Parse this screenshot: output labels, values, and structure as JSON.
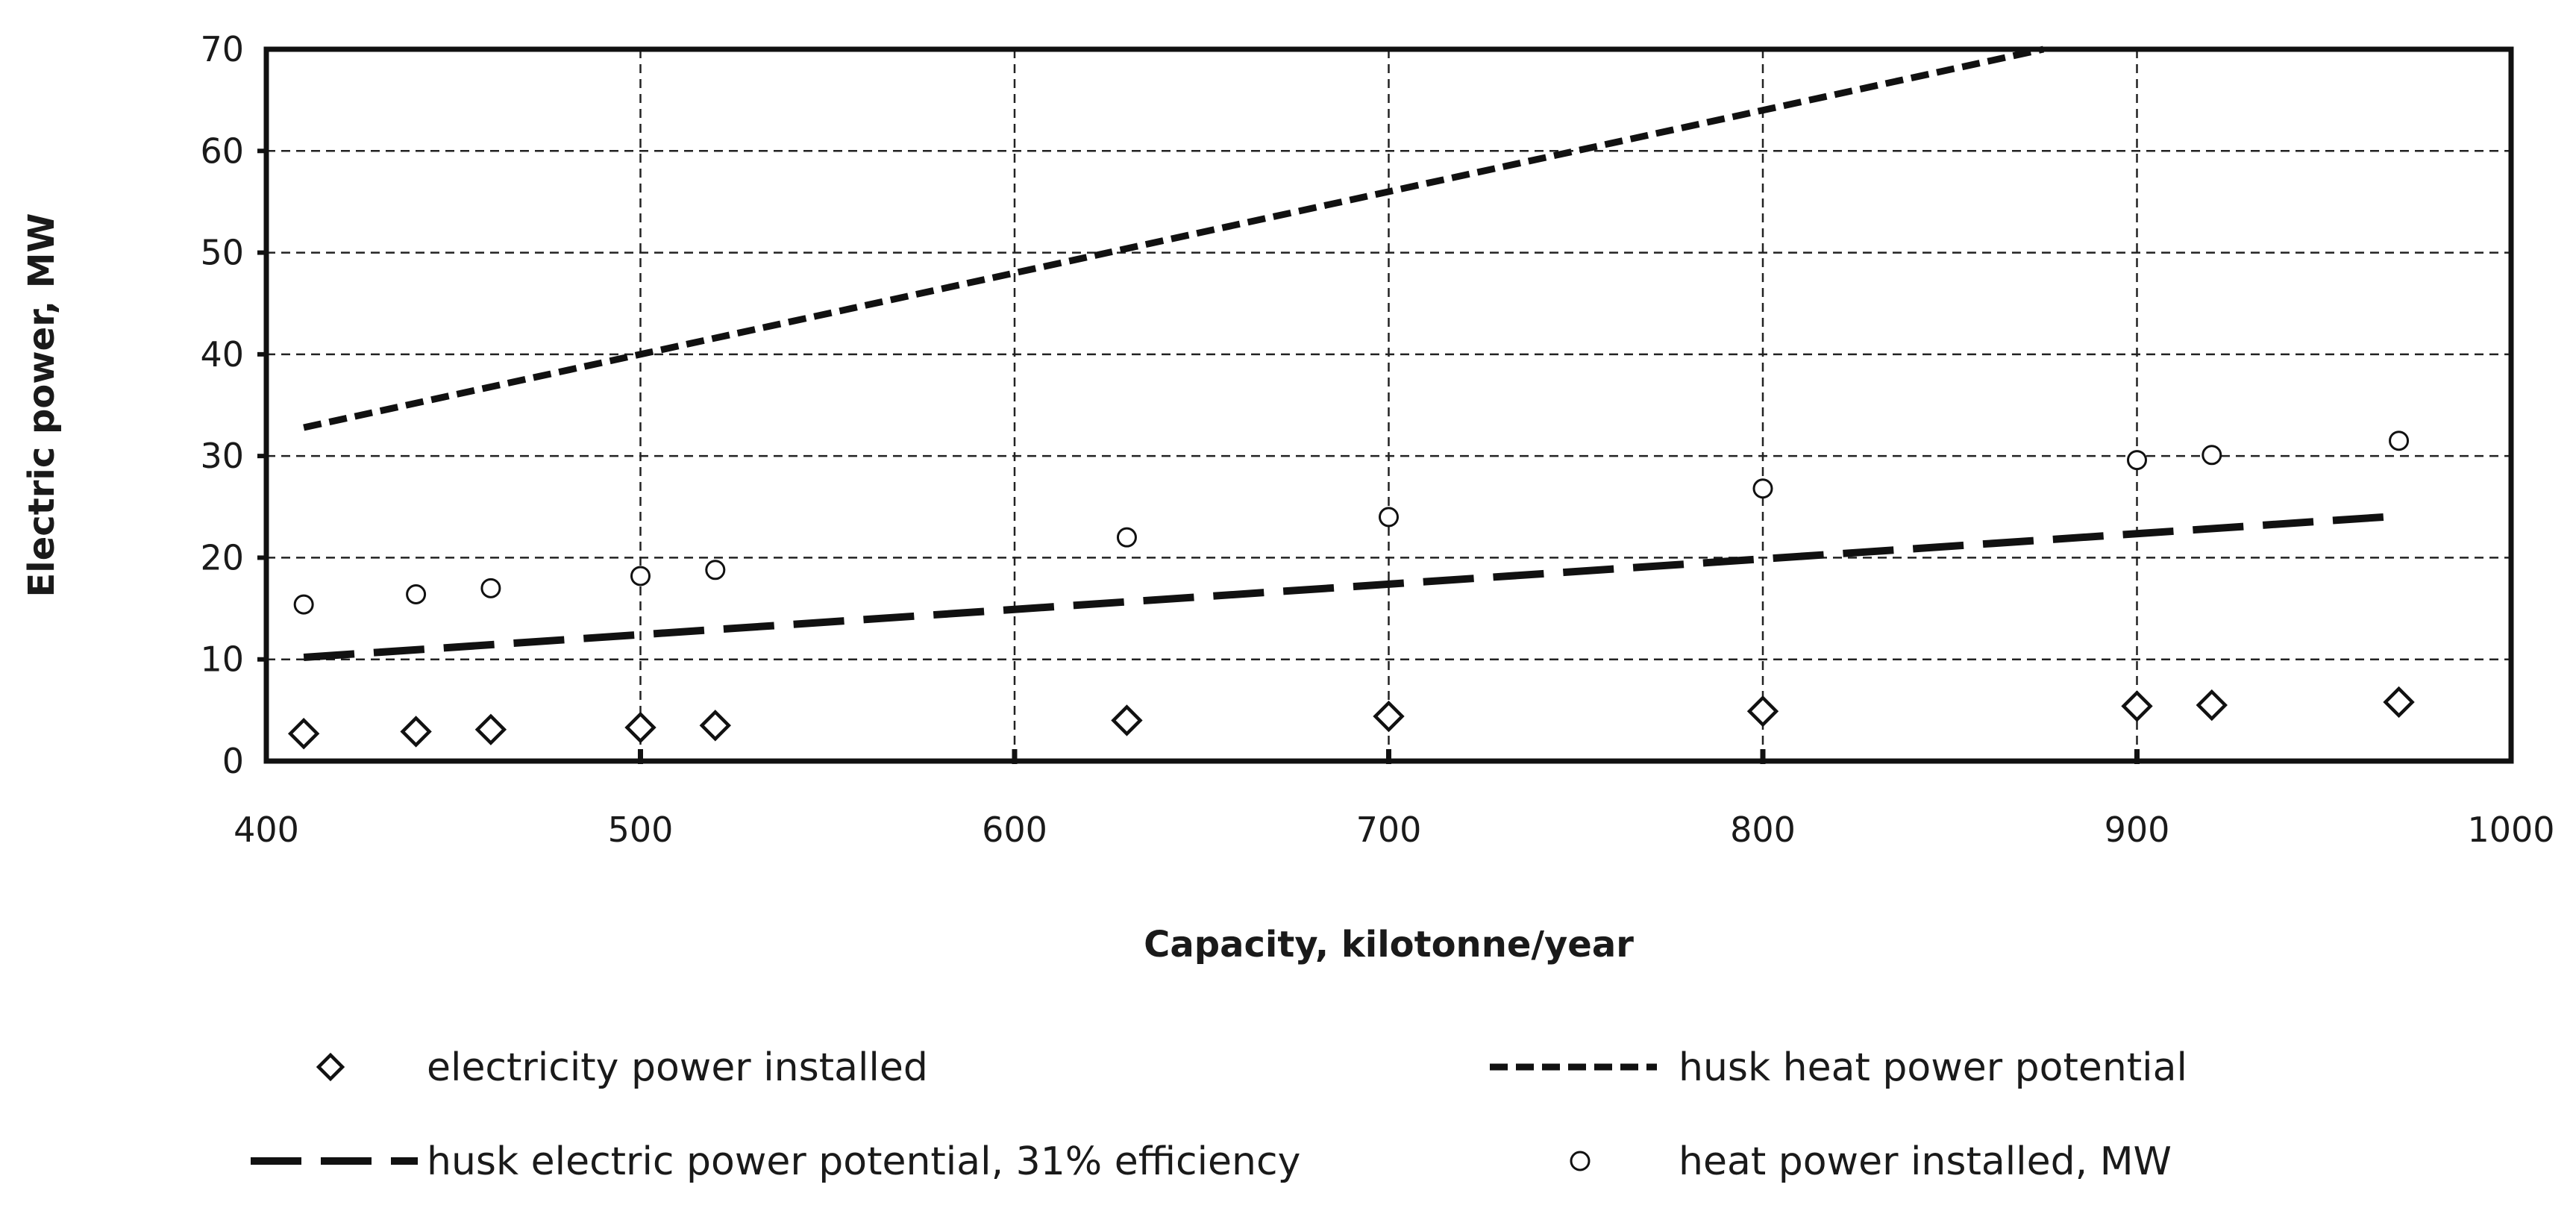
{
  "chart_data": {
    "type": "scatter",
    "title": "",
    "xlabel": "Capacity, kilotonne/year",
    "ylabel": "Electric power, MW",
    "xlim": [
      400,
      1000
    ],
    "ylim": [
      0,
      70
    ],
    "x_ticks": [
      "400",
      "500",
      "600",
      "700",
      "800",
      "900",
      "1000"
    ],
    "y_ticks": [
      "0",
      "10",
      "20",
      "30",
      "40",
      "50",
      "60",
      "70"
    ],
    "grid": true,
    "legend_position": "bottom",
    "series": [
      {
        "name": "electricity power installed",
        "kind": "scatter",
        "marker": "diamond",
        "x": [
          410,
          440,
          460,
          500,
          520,
          630,
          700,
          800,
          900,
          920,
          970
        ],
        "y": [
          2.7,
          2.9,
          3.1,
          3.3,
          3.5,
          4.0,
          4.4,
          4.9,
          5.4,
          5.5,
          5.8
        ]
      },
      {
        "name": "husk heat power potential",
        "kind": "line",
        "style": "short-dash",
        "x": [
          410,
          880
        ],
        "y": [
          32.8,
          70.4
        ]
      },
      {
        "name": "husk electric power potential, 31% efficiency",
        "kind": "line",
        "style": "long-dash",
        "x": [
          410,
          970
        ],
        "y": [
          10.2,
          24.1
        ]
      },
      {
        "name": "heat power installed, MW",
        "kind": "scatter",
        "marker": "circle",
        "x": [
          410,
          440,
          460,
          500,
          520,
          630,
          700,
          800,
          900,
          920,
          970
        ],
        "y": [
          15.4,
          16.4,
          17.0,
          18.2,
          18.8,
          22.0,
          24.0,
          26.8,
          29.6,
          30.1,
          31.5
        ]
      }
    ]
  }
}
